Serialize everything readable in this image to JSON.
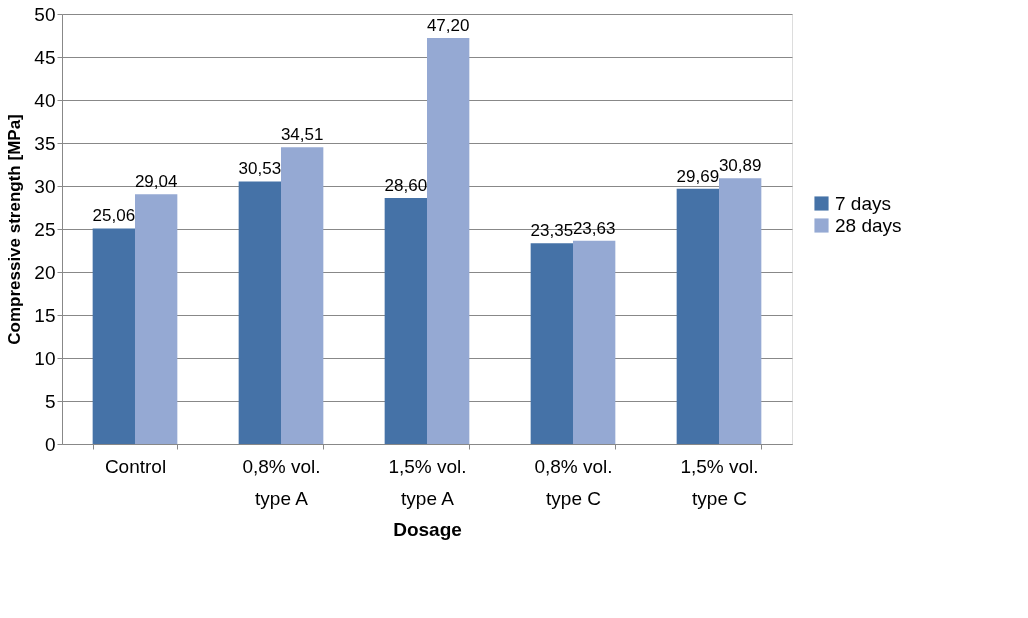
{
  "chart_data": {
    "type": "bar",
    "xlabel": "Dosage",
    "ylabel": "Compressive strength [MPa]",
    "categories": [
      "Control",
      "0,8% vol.\ntype A",
      "1,5% vol.\ntype A",
      "0,8% vol.\ntype C",
      "1,5% vol.\ntype C"
    ],
    "series": [
      {
        "name": "7 days",
        "color": "#4572a7",
        "values": [
          25.06,
          30.53,
          28.6,
          23.35,
          29.69
        ],
        "value_labels": [
          "25,06",
          "30,53",
          "28,60",
          "23,35",
          "29,69"
        ]
      },
      {
        "name": "28 days",
        "color": "#95a9d3",
        "values": [
          29.04,
          34.51,
          47.2,
          23.63,
          30.89
        ],
        "value_labels": [
          "29,04",
          "34,51",
          "47,20",
          "23,63",
          "30,89"
        ]
      }
    ],
    "ylim": [
      0,
      50
    ],
    "yticks": [
      0,
      5,
      10,
      15,
      20,
      25,
      30,
      35,
      40,
      45,
      50
    ],
    "grid": "y",
    "legend": "right"
  }
}
